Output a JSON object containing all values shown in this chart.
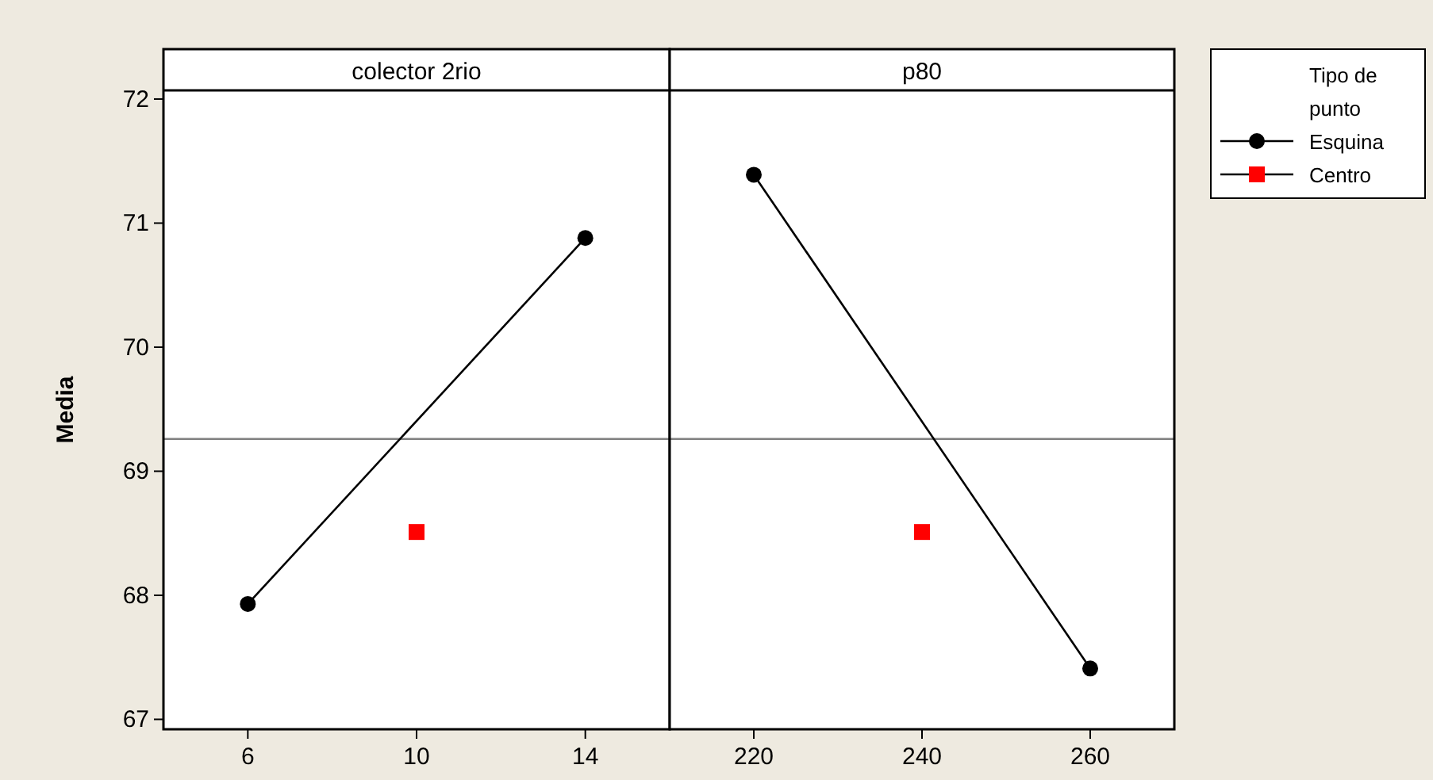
{
  "chart_data": [
    {
      "type": "line",
      "title": "colector 2rio",
      "ylabel": "Media",
      "xlim": [
        4,
        16
      ],
      "xticks": [
        6,
        10,
        14
      ],
      "ylim": [
        66.92,
        72.07
      ],
      "yticks": [
        67,
        68,
        69,
        70,
        71,
        72
      ],
      "grid": false,
      "ref_lines": [
        {
          "axis": "y",
          "value": 69.26,
          "color": "#808080"
        }
      ],
      "series": [
        {
          "color": "#000000",
          "marker": "circle",
          "x": [
            6,
            14
          ],
          "values": [
            67.93,
            70.88
          ]
        },
        {
          "type": "scatter",
          "color": "#ff0000",
          "marker": "square",
          "x": [
            10
          ],
          "values": [
            68.51
          ]
        }
      ]
    },
    {
      "type": "line",
      "title": "p80",
      "xlim": [
        210,
        270
      ],
      "xticks": [
        220,
        240,
        260
      ],
      "ylim": [
        66.92,
        72.07
      ],
      "yticks": [
        67,
        68,
        69,
        70,
        71,
        72
      ],
      "tick_labels": "x",
      "grid": false,
      "legend": "right",
      "legend_title": "Tipo de punto",
      "ref_lines": [
        {
          "axis": "y",
          "value": 69.26,
          "color": "#808080"
        }
      ],
      "series": [
        {
          "name": "Esquina",
          "color": "#000000",
          "marker": "circle",
          "x": [
            220,
            260
          ],
          "values": [
            71.39,
            67.41
          ]
        },
        {
          "type": "scatter",
          "name": "Centro",
          "color": "#ff0000",
          "marker": "square",
          "x": [
            240
          ],
          "values": [
            68.51
          ]
        }
      ]
    }
  ]
}
